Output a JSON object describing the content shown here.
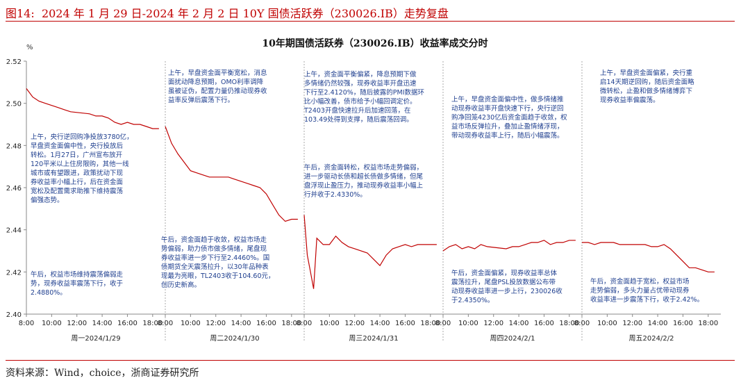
{
  "figure": {
    "label": "图14:",
    "title": "2024 年 1 月 29 日-2024 年 2 月 2 日 10Y 国债活跃券（230026.IB）走势复盘",
    "source": "资料来源：Wind，choice，浙商证券研究所"
  },
  "chart_data": {
    "type": "line",
    "title": "10年期国债活跃券（230026.IB）收益率成交分时",
    "ylabel": "%",
    "ylim": [
      2.4,
      2.52
    ],
    "yticks": [
      "2.52",
      "2.50",
      "2.48",
      "2.46",
      "2.44",
      "2.42",
      "2.40"
    ],
    "xticks": [
      "8:00",
      "10:00",
      "12:00",
      "14:00",
      "16:00",
      "18:00"
    ],
    "line_color": "#c00000",
    "panels": [
      {
        "day": "周一2024/1/29",
        "series": [
          [
            8.0,
            2.507
          ],
          [
            8.5,
            2.503
          ],
          [
            9.0,
            2.501
          ],
          [
            9.5,
            2.5
          ],
          [
            10.0,
            2.499
          ],
          [
            10.5,
            2.498
          ],
          [
            11.0,
            2.497
          ],
          [
            11.5,
            2.496
          ],
          [
            13.0,
            2.495
          ],
          [
            13.5,
            2.494
          ],
          [
            14.0,
            2.494
          ],
          [
            14.5,
            2.493
          ],
          [
            15.0,
            2.491
          ],
          [
            15.5,
            2.49
          ],
          [
            16.0,
            2.491
          ],
          [
            16.5,
            2.49
          ],
          [
            17.0,
            2.49
          ],
          [
            17.5,
            2.489
          ],
          [
            18.0,
            2.488
          ],
          [
            18.5,
            2.488
          ]
        ],
        "annotations": [
          {
            "text": [
              "上午，央行逆回购净投放3780亿，",
              "早盘资金面偏中性，央行投放后",
              "转松。1月27日，广州宣布放开",
              "120平米以上住房限购，其他一线",
              "城市或有望跟进，政策扰动下现",
              "券收益率小幅上行，后在资金面",
              "宽松及配置需求助推下维持震荡",
              "偏强态势。"
            ]
          },
          {
            "text": [
              "午后，权益市场维持震荡偏弱走",
              "势，现券收益率震荡下行，收于",
              "2.4880%。"
            ]
          }
        ]
      },
      {
        "day": "周二2024/1/30",
        "series": [
          [
            8.0,
            2.489
          ],
          [
            8.5,
            2.481
          ],
          [
            9.0,
            2.476
          ],
          [
            9.5,
            2.472
          ],
          [
            10.0,
            2.468
          ],
          [
            10.5,
            2.467
          ],
          [
            11.0,
            2.466
          ],
          [
            11.5,
            2.465
          ],
          [
            13.0,
            2.465
          ],
          [
            13.5,
            2.464
          ],
          [
            14.0,
            2.463
          ],
          [
            14.5,
            2.462
          ],
          [
            15.0,
            2.461
          ],
          [
            15.5,
            2.46
          ],
          [
            16.0,
            2.457
          ],
          [
            16.5,
            2.452
          ],
          [
            17.0,
            2.447
          ],
          [
            17.5,
            2.444
          ],
          [
            18.0,
            2.445
          ],
          [
            18.5,
            2.445
          ]
        ],
        "annotations": [
          {
            "text": [
              "上午，早盘资金面平衡宽松，消息",
              "面扰动降息预期，OMO利率调降",
              "虽被证伪，配置力量仍推动现券收",
              "益率反弹后震荡下行。"
            ]
          },
          {
            "text": [
              "午后，资金面趋于收敛，权益市场走",
              "势偏弱，助力债市做多情绪，尾盘现",
              "券收益率进一步下行至2.4460%。国",
              "债期货全天震荡拉升，以30年品种表",
              "现最为亮眼，TL2403收于104.60元，",
              "创历史新高。"
            ]
          }
        ]
      },
      {
        "day": "周三2024/1/31",
        "series": [
          [
            8.0,
            2.447
          ],
          [
            8.25,
            2.428
          ],
          [
            8.5,
            2.42
          ],
          [
            8.75,
            2.412
          ],
          [
            9.0,
            2.436
          ],
          [
            9.5,
            2.433
          ],
          [
            10.0,
            2.433
          ],
          [
            10.5,
            2.437
          ],
          [
            11.0,
            2.434
          ],
          [
            11.5,
            2.432
          ],
          [
            13.0,
            2.429
          ],
          [
            13.5,
            2.426
          ],
          [
            14.0,
            2.423
          ],
          [
            14.5,
            2.428
          ],
          [
            15.0,
            2.431
          ],
          [
            15.5,
            2.432
          ],
          [
            16.0,
            2.433
          ],
          [
            16.5,
            2.432
          ],
          [
            17.0,
            2.433
          ],
          [
            17.5,
            2.433
          ],
          [
            18.0,
            2.433
          ],
          [
            18.5,
            2.433
          ]
        ],
        "annotations": [
          {
            "text": [
              "上午，资金面平衡偏紧，降息预期下做",
              "多情绪仍然较强，现券收益率开盘迅速",
              "下行至2.4120%，随后披露的PMI数据环",
              "比小幅改善，债市给予小幅回调定价。",
              "T2403开盘快速拉升后加速回落，在",
              "103.49处得到支撑，随后震荡回调。"
            ]
          },
          {
            "text": [
              "午后，资金面转松，权益市场走势偏弱，",
              "进一步驱动长债和超长债做多情绪，但尾",
              "盘浮现止盈压力，推动现券收益率小幅上",
              "行并收于2.4330%。"
            ]
          }
        ]
      },
      {
        "day": "周四2024/2/1",
        "series": [
          [
            8.0,
            2.43
          ],
          [
            8.5,
            2.432
          ],
          [
            9.0,
            2.433
          ],
          [
            9.5,
            2.431
          ],
          [
            10.0,
            2.432
          ],
          [
            10.5,
            2.431
          ],
          [
            11.0,
            2.433
          ],
          [
            11.5,
            2.432
          ],
          [
            13.0,
            2.431
          ],
          [
            13.5,
            2.432
          ],
          [
            14.0,
            2.432
          ],
          [
            14.5,
            2.433
          ],
          [
            15.0,
            2.434
          ],
          [
            15.5,
            2.434
          ],
          [
            16.0,
            2.435
          ],
          [
            16.5,
            2.433
          ],
          [
            17.0,
            2.434
          ],
          [
            17.5,
            2.434
          ],
          [
            18.0,
            2.435
          ],
          [
            18.5,
            2.435
          ]
        ],
        "annotations": [
          {
            "text": [
              "上午，早盘资金面偏中性，做多情绪推",
              "动现券收益率开盘快速下行，央行逆回",
              "购净回笼4230亿后资金面趋于收敛，权",
              "益市场反弹拉升，叠加止盈情绪浮现，",
              "带动现券收益率上行，随后小幅震荡。"
            ]
          },
          {
            "text": [
              "午后，资金面偏紧，现券收益率总体",
              "震荡拉升，尾盘PSL投放数据公布带",
              "动现券收益率进一步上行，230026收",
              "于2.4350%。"
            ]
          }
        ]
      },
      {
        "day": "周五2024/2/2",
        "series": [
          [
            8.0,
            2.434
          ],
          [
            8.5,
            2.434
          ],
          [
            9.0,
            2.433
          ],
          [
            9.5,
            2.434
          ],
          [
            10.0,
            2.434
          ],
          [
            10.5,
            2.434
          ],
          [
            11.0,
            2.433
          ],
          [
            11.5,
            2.433
          ],
          [
            13.0,
            2.433
          ],
          [
            13.5,
            2.432
          ],
          [
            14.0,
            2.432
          ],
          [
            14.5,
            2.433
          ],
          [
            15.0,
            2.431
          ],
          [
            15.5,
            2.428
          ],
          [
            16.0,
            2.425
          ],
          [
            16.5,
            2.422
          ],
          [
            17.0,
            2.422
          ],
          [
            17.5,
            2.421
          ],
          [
            18.0,
            2.42
          ],
          [
            18.5,
            2.42
          ]
        ],
        "annotations": [
          {
            "text": [
              "上午，早盘资金面偏紧，央行重",
              "启14天期逆回购，随后资金面略",
              "微转松，止盈和做多情绪博弈下",
              "现券收益率偏震荡。"
            ]
          },
          {
            "text": [
              "午后，资金面趋于宽松，权益市场",
              "走势偏弱，多头力量占优带动现券",
              "收益率进一步震荡下行，收于2.42%。"
            ]
          }
        ]
      }
    ]
  }
}
